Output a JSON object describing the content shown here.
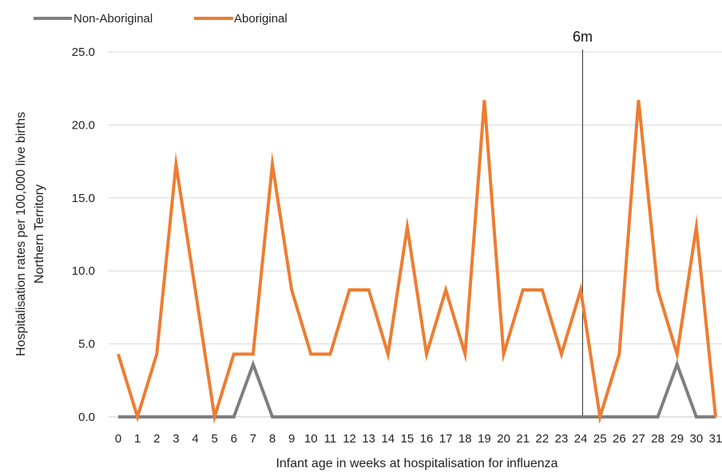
{
  "chart_data": {
    "type": "line",
    "title": "",
    "xlabel": "Infant age in weeks at hospitalisation for influenza",
    "ylabel_lines": [
      "Hospitalisation rates per 100,000 live births",
      "Northern Territory"
    ],
    "x": [
      0,
      1,
      2,
      3,
      4,
      5,
      6,
      7,
      8,
      9,
      10,
      11,
      12,
      13,
      14,
      15,
      16,
      17,
      18,
      19,
      20,
      21,
      22,
      23,
      24,
      25,
      26,
      27,
      28,
      29,
      30,
      31
    ],
    "x_tick_labels": [
      "0",
      "1",
      "2",
      "3",
      "4",
      "5",
      "6",
      "7",
      "8",
      "9",
      "10",
      "11",
      "12",
      "13",
      "14",
      "15",
      "16",
      "17",
      "18",
      "19",
      "20",
      "21",
      "22",
      "23",
      "24",
      "25",
      "26",
      "27",
      "28",
      "29",
      "30",
      "31"
    ],
    "ylim": [
      0,
      25
    ],
    "y_ticks": [
      0,
      5,
      10,
      15,
      20,
      25
    ],
    "y_tick_labels": [
      "0.0",
      "5.0",
      "10.0",
      "15.0",
      "20.0",
      "25.0"
    ],
    "grid": "horizontal",
    "legend_position": "top-left",
    "series": [
      {
        "name": "Non-Aboriginal",
        "color": "#7f7f7f",
        "values": [
          0,
          0,
          0,
          0,
          0,
          0,
          0,
          3.6,
          0,
          0,
          0,
          0,
          0,
          0,
          0,
          0,
          0,
          0,
          0,
          0,
          0,
          0,
          0,
          0,
          0,
          0,
          0,
          0,
          0,
          3.6,
          0,
          0
        ]
      },
      {
        "name": "Aboriginal",
        "color": "#ed7d31",
        "values": [
          4.3,
          0,
          4.3,
          17.3,
          8.7,
          0,
          4.3,
          4.3,
          17.3,
          8.7,
          4.3,
          4.3,
          8.7,
          8.7,
          4.3,
          13.0,
          4.3,
          8.7,
          4.3,
          21.7,
          4.3,
          8.7,
          8.7,
          4.3,
          8.7,
          0,
          4.3,
          21.7,
          8.7,
          4.3,
          13.0,
          0
        ]
      }
    ],
    "annotations": [
      {
        "label": "6m",
        "x": 24.1,
        "type": "vertical-line"
      }
    ]
  }
}
